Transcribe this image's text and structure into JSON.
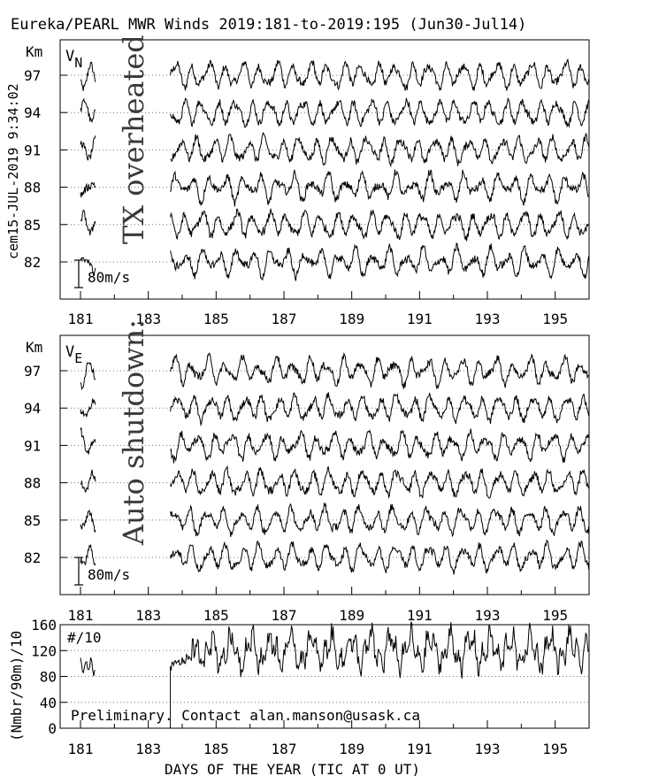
{
  "title": "Eureka/PEARL MWR Winds 2019:181-to-2019:195 (Jun30-Jul14)",
  "side_label": "cem15-JUL-2019  9:34:02",
  "x_axis": {
    "label": "DAYS OF THE YEAR (TIC AT 0 UT)",
    "ticks": [
      "181",
      "183",
      "185",
      "187",
      "189",
      "191",
      "193",
      "195"
    ],
    "range": [
      180.4,
      196
    ]
  },
  "annotations": {
    "gap_note_1": "TX overheated",
    "gap_note_2": "Auto shutdown:",
    "preliminary": "Preliminary. Contact alan.manson@usask.ca"
  },
  "chart_data": [
    {
      "id": "vn",
      "type": "line",
      "component_main": "V",
      "component_sub": "N",
      "y_unit": "Km",
      "heights": [
        "97",
        "94",
        "91",
        "88",
        "85",
        "82"
      ],
      "scale_label": "80m/s",
      "scale_ms": 80,
      "segments": [
        [
          181.0,
          181.45
        ],
        [
          183.65,
          196.0
        ]
      ],
      "grid": "dotted"
    },
    {
      "id": "ve",
      "type": "line",
      "component_main": "V",
      "component_sub": "E",
      "y_unit": "Km",
      "heights": [
        "97",
        "94",
        "91",
        "88",
        "85",
        "82"
      ],
      "scale_label": "80m/s",
      "scale_ms": 80,
      "segments": [
        [
          181.0,
          181.45
        ],
        [
          183.65,
          196.0
        ]
      ],
      "grid": "dotted"
    },
    {
      "id": "count",
      "type": "line",
      "y_label": "(Nmbr/90m)/10",
      "inner_label": "#/10",
      "yticks": [
        "0",
        "40",
        "80",
        "120",
        "160"
      ],
      "ylim": [
        0,
        160
      ],
      "segments": [
        [
          181.0,
          181.45
        ],
        [
          183.65,
          196.0
        ]
      ],
      "typical_level": 120,
      "grid": "dotted"
    }
  ]
}
